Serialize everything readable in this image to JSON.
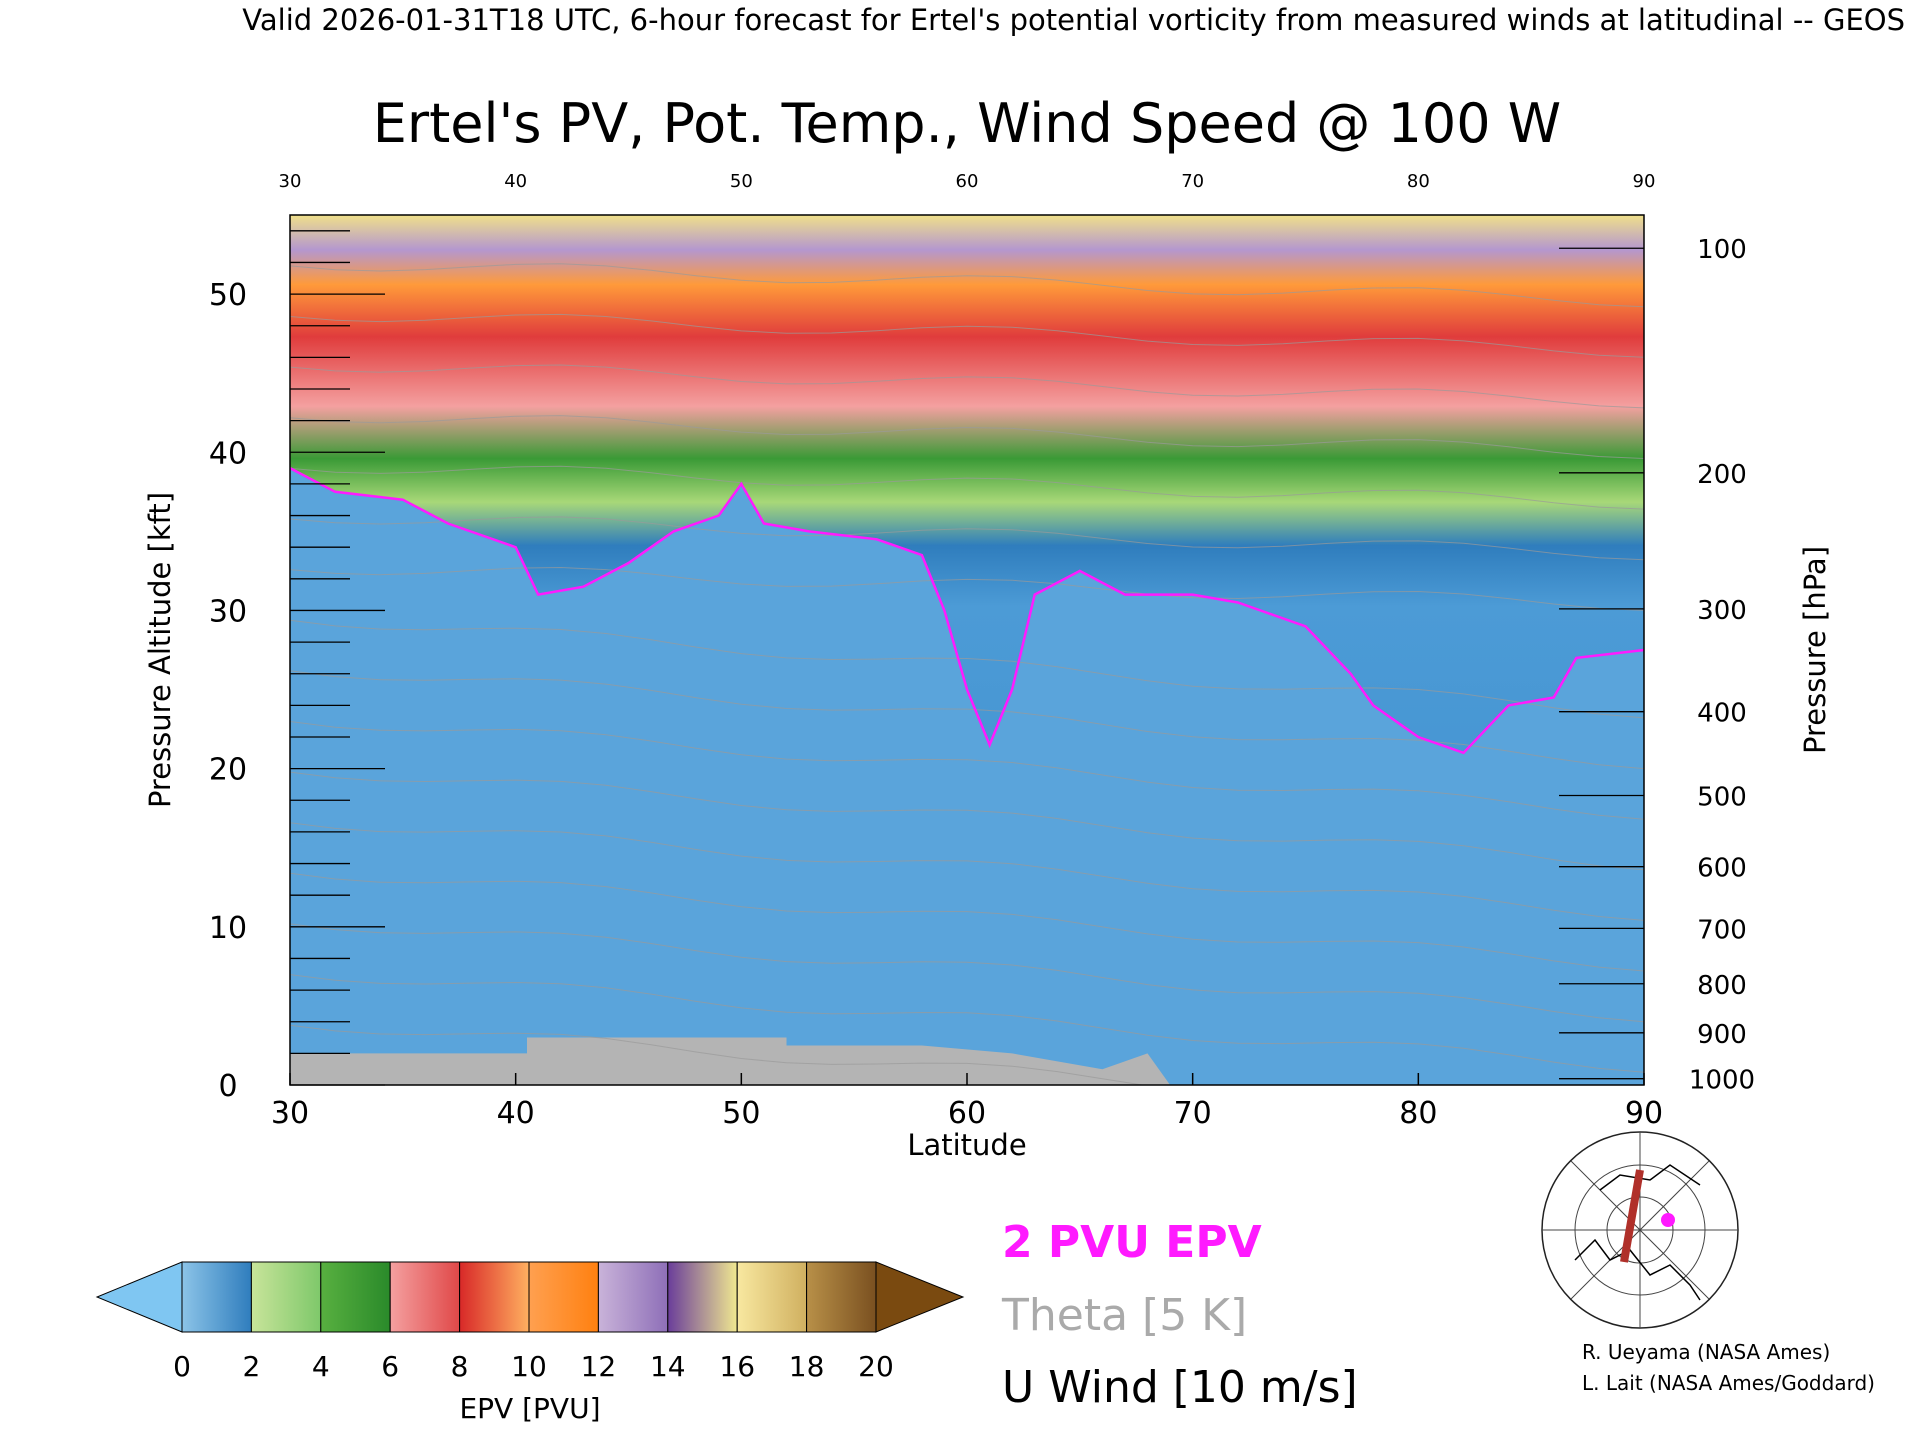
{
  "header": {
    "valid_line": "Valid 2026-01-31T18 UTC, 6-hour forecast for Ertel's potential vorticity from measured winds at latitudinal -- GEOS"
  },
  "chart_data": {
    "type": "heatmap",
    "title": "Ertel's PV, Pot. Temp., Wind Speed @ 100 W",
    "xlabel": "Latitude",
    "ylabel_left": "Pressure Altitude [kft]",
    "ylabel_right": "Pressure [hPa]",
    "xlim": [
      30,
      90
    ],
    "ylim": [
      0,
      55
    ],
    "x_ticks": [
      "30",
      "40",
      "50",
      "60",
      "70",
      "80",
      "90"
    ],
    "y_ticks": [
      "0",
      "10",
      "20",
      "30",
      "40",
      "50"
    ],
    "pressure_ticks": [
      {
        "label": "100",
        "kft": 52.9
      },
      {
        "label": "200",
        "kft": 38.7
      },
      {
        "label": "300",
        "kft": 30.1
      },
      {
        "label": "400",
        "kft": 23.6
      },
      {
        "label": "500",
        "kft": 18.3
      },
      {
        "label": "600",
        "kft": 13.8
      },
      {
        "label": "700",
        "kft": 9.9
      },
      {
        "label": "800",
        "kft": 6.4
      },
      {
        "label": "900",
        "kft": 3.3
      },
      {
        "label": "1000",
        "kft": 0.4
      }
    ],
    "tropopause_2pvu_kft": [
      {
        "lat": 30,
        "kft": 39.0
      },
      {
        "lat": 32,
        "kft": 37.5
      },
      {
        "lat": 35,
        "kft": 37.0
      },
      {
        "lat": 37,
        "kft": 35.5
      },
      {
        "lat": 40,
        "kft": 34.0
      },
      {
        "lat": 41,
        "kft": 31.0
      },
      {
        "lat": 43,
        "kft": 31.5
      },
      {
        "lat": 45,
        "kft": 33.0
      },
      {
        "lat": 47,
        "kft": 35.0
      },
      {
        "lat": 49,
        "kft": 36.0
      },
      {
        "lat": 50,
        "kft": 38.0
      },
      {
        "lat": 51,
        "kft": 35.5
      },
      {
        "lat": 53,
        "kft": 35.0
      },
      {
        "lat": 56,
        "kft": 34.5
      },
      {
        "lat": 58,
        "kft": 33.5
      },
      {
        "lat": 59,
        "kft": 30.0
      },
      {
        "lat": 60,
        "kft": 25.0
      },
      {
        "lat": 61,
        "kft": 21.5
      },
      {
        "lat": 62,
        "kft": 25.0
      },
      {
        "lat": 63,
        "kft": 31.0
      },
      {
        "lat": 65,
        "kft": 32.5
      },
      {
        "lat": 67,
        "kft": 31.0
      },
      {
        "lat": 70,
        "kft": 31.0
      },
      {
        "lat": 72,
        "kft": 30.5
      },
      {
        "lat": 75,
        "kft": 29.0
      },
      {
        "lat": 77,
        "kft": 26.0
      },
      {
        "lat": 78,
        "kft": 24.0
      },
      {
        "lat": 80,
        "kft": 22.0
      },
      {
        "lat": 82,
        "kft": 21.0
      },
      {
        "lat": 84,
        "kft": 24.0
      },
      {
        "lat": 86,
        "kft": 24.5
      },
      {
        "lat": 87,
        "kft": 27.0
      },
      {
        "lat": 90,
        "kft": 27.5
      }
    ],
    "epv_colorbar": {
      "label": "EPV [PVU]",
      "tick_labels": [
        "0",
        "2",
        "4",
        "6",
        "8",
        "10",
        "12",
        "14",
        "16",
        "18",
        "20"
      ],
      "under_color": "#7fc6f2",
      "over_color": "#7a4a10",
      "band_colors": [
        [
          "#8cc4e8",
          "#2f7dbd"
        ],
        [
          "#c8e49a",
          "#7ec86a"
        ],
        [
          "#58b040",
          "#2a8a2a"
        ],
        [
          "#f4a0a0",
          "#e04848"
        ],
        [
          "#d82828",
          "#ffb060"
        ],
        [
          "#ffa050",
          "#ff8010"
        ],
        [
          "#c9b3d9",
          "#8e6fb8"
        ],
        [
          "#6a3d9a",
          "#f0e890"
        ],
        [
          "#f8e8a0",
          "#d0b060"
        ],
        [
          "#b89048",
          "#7a5020"
        ]
      ]
    },
    "legend": [
      {
        "label": "2 PVU EPV",
        "color": "#ff1aff"
      },
      {
        "label": "Theta [5 K]",
        "color": "#aaaaaa"
      },
      {
        "label": "U Wind [10 m/s]",
        "color": "#000000"
      }
    ],
    "inset_map": "north-polar-map-with-cross-section-line",
    "credits": [
      "R. Ueyama (NASA Ames)",
      "L. Lait (NASA Ames/Goddard)"
    ]
  }
}
